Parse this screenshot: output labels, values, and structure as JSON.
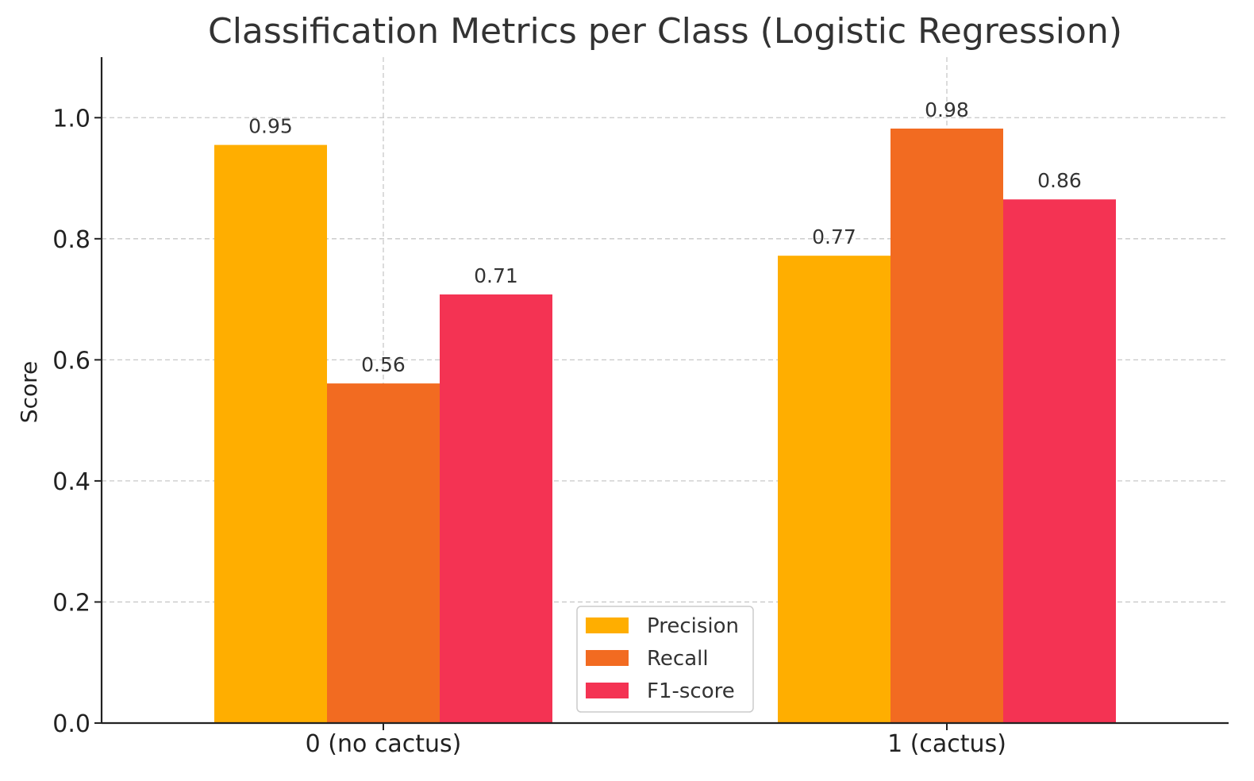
{
  "chart_data": {
    "type": "bar",
    "title": "Classification Metrics per Class (Logistic Regression)",
    "xlabel": "",
    "ylabel": "Score",
    "categories": [
      "0 (no cactus)",
      "1 (cactus)"
    ],
    "series": [
      {
        "name": "Precision",
        "color": "#FFAE00",
        "values": [
          0.955,
          0.772
        ],
        "labels": [
          "0.95",
          "0.77"
        ]
      },
      {
        "name": "Recall",
        "color": "#F26B21",
        "values": [
          0.561,
          0.982
        ],
        "labels": [
          "0.56",
          "0.98"
        ]
      },
      {
        "name": "F1-score",
        "color": "#F43353",
        "values": [
          0.708,
          0.865
        ],
        "labels": [
          "0.71",
          "0.86"
        ]
      }
    ],
    "ylim": [
      0,
      1.1
    ],
    "yticks": [
      0.0,
      0.2,
      0.4,
      0.6,
      0.8,
      1.0
    ],
    "ytick_labels": [
      "0.0",
      "0.2",
      "0.4",
      "0.6",
      "0.8",
      "1.0"
    ],
    "grid": true,
    "legend_position": "bottom-center"
  }
}
